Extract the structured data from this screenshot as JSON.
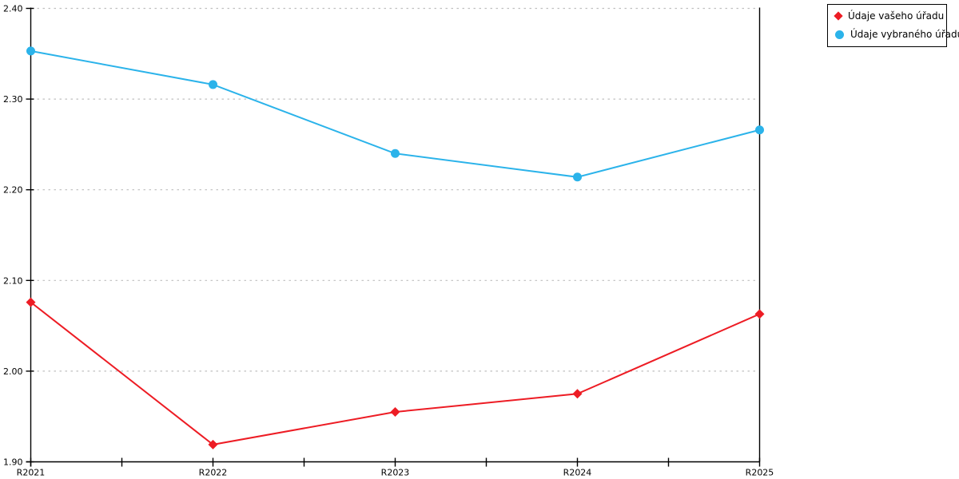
{
  "legend": {
    "items": [
      {
        "label": "Údaje vašeho úřadu",
        "color": "#ed1c24",
        "marker": "diamond"
      },
      {
        "label": "Údaje vybraného úřadu",
        "color": "#2bb3ea",
        "marker": "circle"
      }
    ]
  },
  "chart_data": {
    "type": "line",
    "title": "",
    "xlabel": "",
    "ylabel": "",
    "categories": [
      "R2021",
      "R2022",
      "R2023",
      "R2024",
      "R2025"
    ],
    "series": [
      {
        "name": "Údaje vašeho úřadu",
        "color": "#ed1c24",
        "marker": "diamond",
        "values": [
          2.076,
          1.919,
          1.955,
          1.975,
          2.063
        ]
      },
      {
        "name": "Údaje vybraného úřadu",
        "color": "#2bb3ea",
        "marker": "circle",
        "values": [
          2.353,
          2.316,
          2.24,
          2.214,
          2.266
        ]
      }
    ],
    "ylim": [
      1.9,
      2.4
    ],
    "ytick_step": 0.1,
    "ytick_labels": [
      "1.90",
      "2.00",
      "2.10",
      "2.20",
      "2.30",
      "2.40"
    ],
    "grid": "horizontal-dotted",
    "gridline_color": "#bfbfbf",
    "axis_color": "#000000",
    "legend_position": "outside-top-right"
  }
}
